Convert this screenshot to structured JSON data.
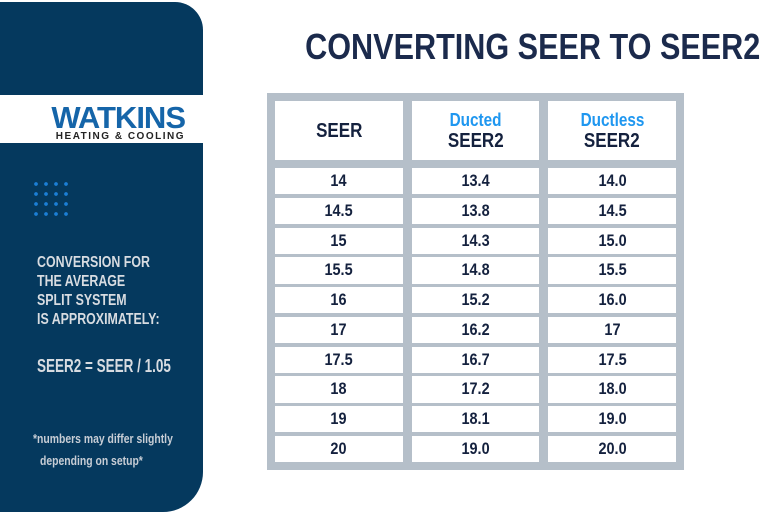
{
  "colors": {
    "navy": "#05395E",
    "heading_navy": "#1B2A4C",
    "accent_blue": "#1F97F0",
    "logo_blue": "#1565A9",
    "table_gray": "#B5BFC9",
    "sidebar_text": "#D8DCE1",
    "footnote_text": "#C7CDD5",
    "dot_blue": "#1C7FD6"
  },
  "brand": {
    "name": "WATKINS",
    "tagline": "HEATING & COOLING"
  },
  "sidebar": {
    "paragraph_lines": [
      "CONVERSION FOR",
      "THE AVERAGE",
      "SPLIT SYSTEM",
      "IS APPROXIMATELY:"
    ],
    "formula": "SEER2 = SEER / 1.05",
    "footnote_line1": "*numbers may differ slightly",
    "footnote_line2": "depending on setup*"
  },
  "main": {
    "title": "CONVERTING SEER TO SEER2"
  },
  "table": {
    "columns": [
      {
        "top": "",
        "bottom": "SEER"
      },
      {
        "top": "Ducted",
        "bottom": "SEER2"
      },
      {
        "top": "Ductless",
        "bottom": "SEER2"
      }
    ]
  },
  "chart_data": {
    "type": "table",
    "title": "CONVERTING SEER TO SEER2",
    "columns": [
      "SEER",
      "Ducted SEER2",
      "Ductless SEER2"
    ],
    "rows": [
      [
        "14",
        "13.4",
        "14.0"
      ],
      [
        "14.5",
        "13.8",
        "14.5"
      ],
      [
        "15",
        "14.3",
        "15.0"
      ],
      [
        "15.5",
        "14.8",
        "15.5"
      ],
      [
        "16",
        "15.2",
        "16.0"
      ],
      [
        "17",
        "16.2",
        "17"
      ],
      [
        "17.5",
        "16.7",
        "17.5"
      ],
      [
        "18",
        "17.2",
        "18.0"
      ],
      [
        "19",
        "18.1",
        "19.0"
      ],
      [
        "20",
        "19.0",
        "20.0"
      ]
    ],
    "notes": [
      "SEER2 = SEER / 1.05",
      "*numbers may differ slightly depending on setup*"
    ]
  }
}
